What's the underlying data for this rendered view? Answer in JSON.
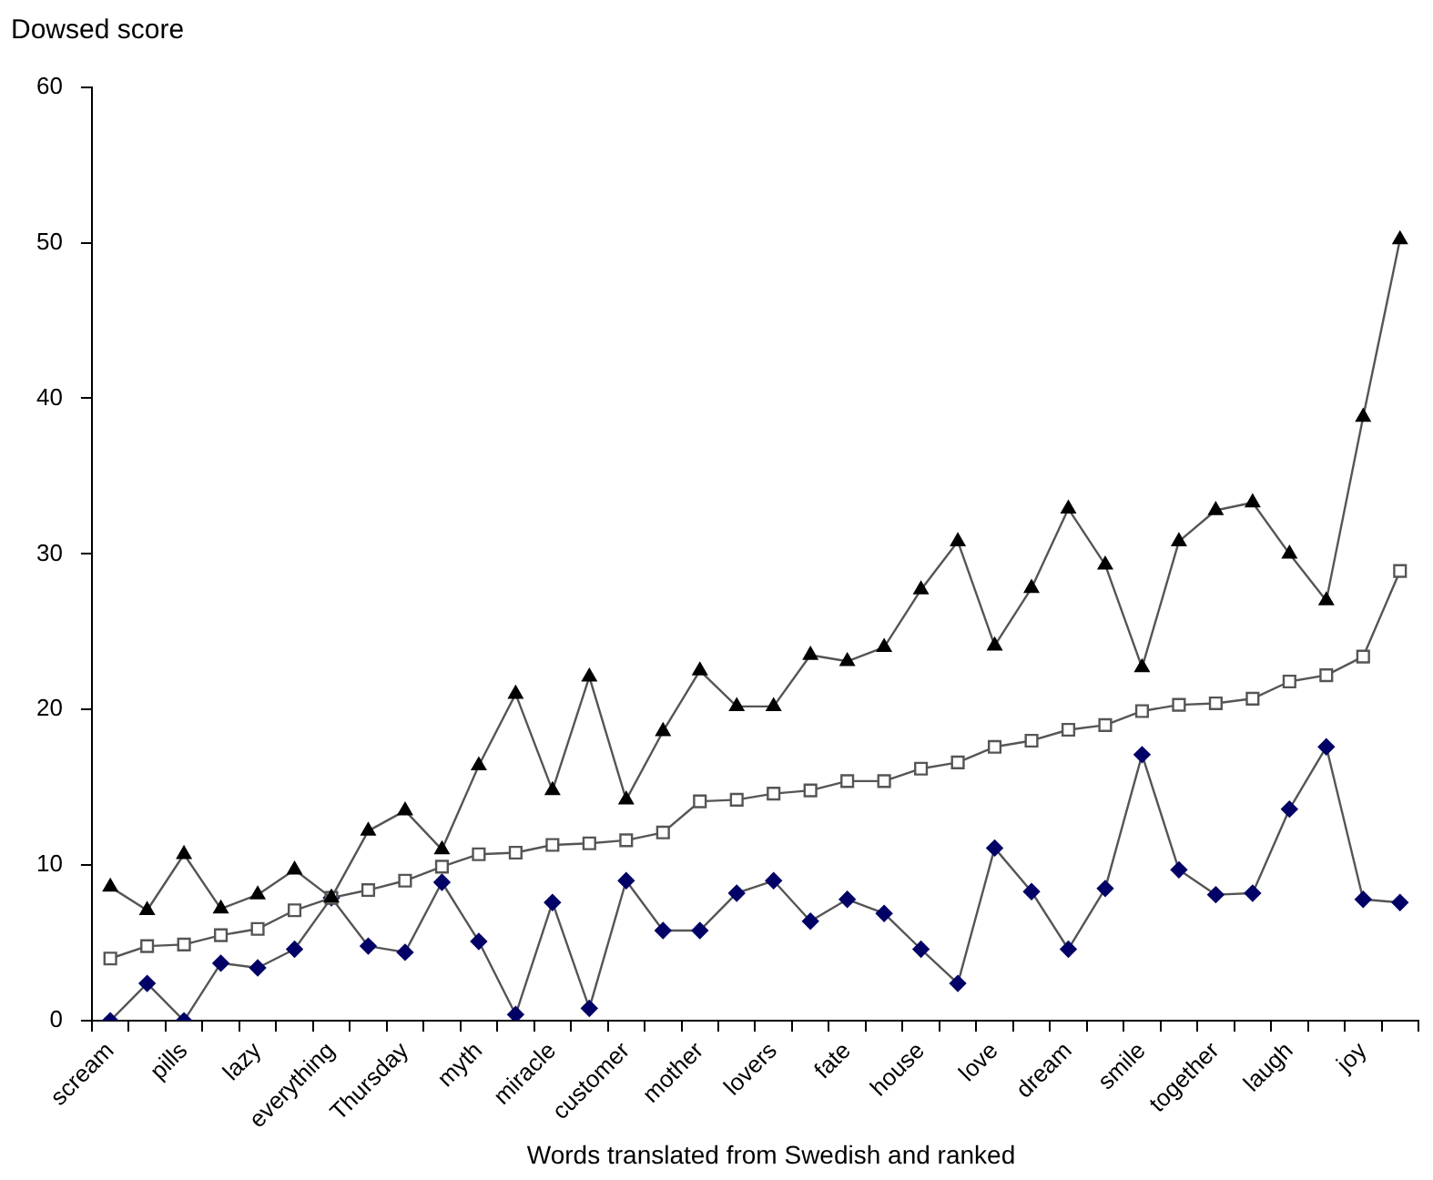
{
  "chart_data": {
    "type": "line",
    "ylabel": "Dowsed score",
    "xlabel": "Words translated from Swedish and ranked",
    "categories": [
      "scream",
      null,
      "pills",
      null,
      "lazy",
      null,
      "everything",
      null,
      "Thursday",
      null,
      "myth",
      null,
      "miracle",
      null,
      "customer",
      null,
      "mother",
      null,
      "lovers",
      null,
      "fate",
      null,
      "house",
      null,
      "love",
      null,
      "dream",
      null,
      "smile",
      null,
      "together",
      null,
      "laugh",
      null,
      "joy",
      null
    ],
    "series": [
      {
        "color": "#000000",
        "marker": "triangle",
        "values": [
          8.6,
          7.1,
          10.7,
          7.2,
          8.1,
          9.7,
          7.9,
          12.2,
          13.5,
          11,
          16.4,
          21,
          14.8,
          22.1,
          14.2,
          18.6,
          22.5,
          20.2,
          20.2,
          23.5,
          23.1,
          24,
          27.7,
          30.8,
          24.1,
          27.8,
          32.9,
          29.3,
          22.7,
          30.8,
          32.8,
          33.3,
          30,
          27,
          38.8,
          50.2
        ]
      },
      {
        "color": "#ffffff",
        "marker": "square",
        "values": [
          4.0,
          4.8,
          4.9,
          5.5,
          5.9,
          7.1,
          7.9,
          8.4,
          9.0,
          9.9,
          10.7,
          10.8,
          11.3,
          11.4,
          11.6,
          12.1,
          14.1,
          14.2,
          14.6,
          14.8,
          15.4,
          15.4,
          16.2,
          16.6,
          17.6,
          18.0,
          18.7,
          19.0,
          19.9,
          20.3,
          20.4,
          20.7,
          21.8,
          22.2,
          23.4,
          28.9
        ]
      },
      {
        "color": "#000066",
        "marker": "diamond",
        "values": [
          0,
          2.4,
          0,
          3.7,
          3.4,
          4.6,
          7.9,
          4.8,
          4.4,
          8.9,
          5.1,
          0.4,
          7.6,
          0.8,
          9.0,
          5.8,
          5.8,
          8.2,
          9.0,
          6.4,
          7.8,
          6.9,
          4.6,
          2.4,
          11.1,
          8.3,
          4.6,
          8.5,
          17.1,
          9.7,
          8.1,
          8.2,
          13.6,
          17.6,
          7.8,
          7.6
        ]
      }
    ],
    "ylim": [
      0,
      60
    ],
    "yticks": [
      0,
      10,
      20,
      30,
      40,
      50,
      60
    ],
    "grid": false,
    "legend": false
  }
}
